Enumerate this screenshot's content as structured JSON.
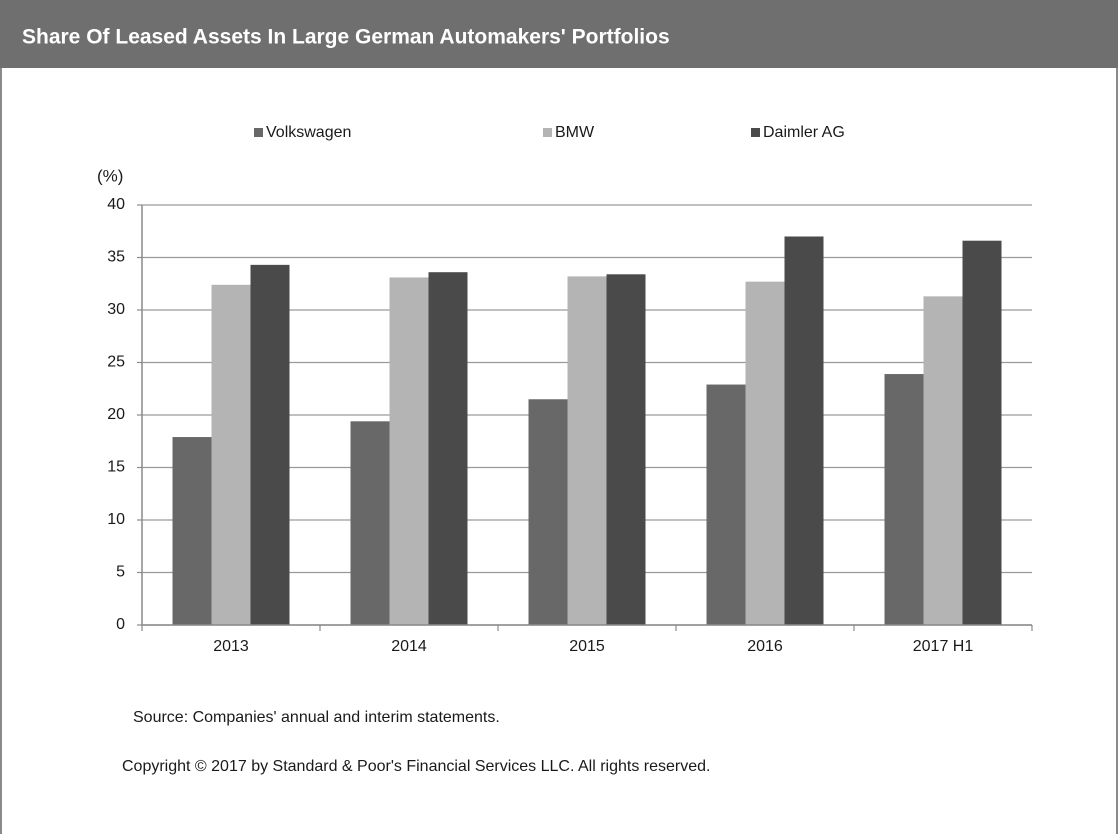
{
  "chart_data": {
    "type": "bar",
    "title": "Share Of Leased Assets  In Large German Automakers' Portfolios",
    "y_label": "(%)",
    "categories": [
      "2013",
      "2014",
      "2015",
      "2016",
      "2017 H1"
    ],
    "series": [
      {
        "name": "Volkswagen",
        "color": "#686868",
        "values": [
          17.9,
          19.4,
          21.5,
          22.9,
          23.9
        ]
      },
      {
        "name": "BMW",
        "color": "#b4b4b4",
        "values": [
          32.4,
          33.1,
          33.2,
          32.7,
          31.3
        ]
      },
      {
        "name": "Daimler AG",
        "color": "#4a4a4a",
        "values": [
          34.3,
          33.6,
          33.4,
          37.0,
          36.6
        ]
      }
    ],
    "ylim": [
      0,
      40
    ],
    "yticks": [
      0,
      5,
      10,
      15,
      20,
      25,
      30,
      35,
      40
    ],
    "grid": true,
    "legend": "top",
    "source": "Source: Companies' annual and interim statements.",
    "copyright": "Copyright © 2017 by Standard & Poor's Financial Services LLC. All rights reserved."
  }
}
